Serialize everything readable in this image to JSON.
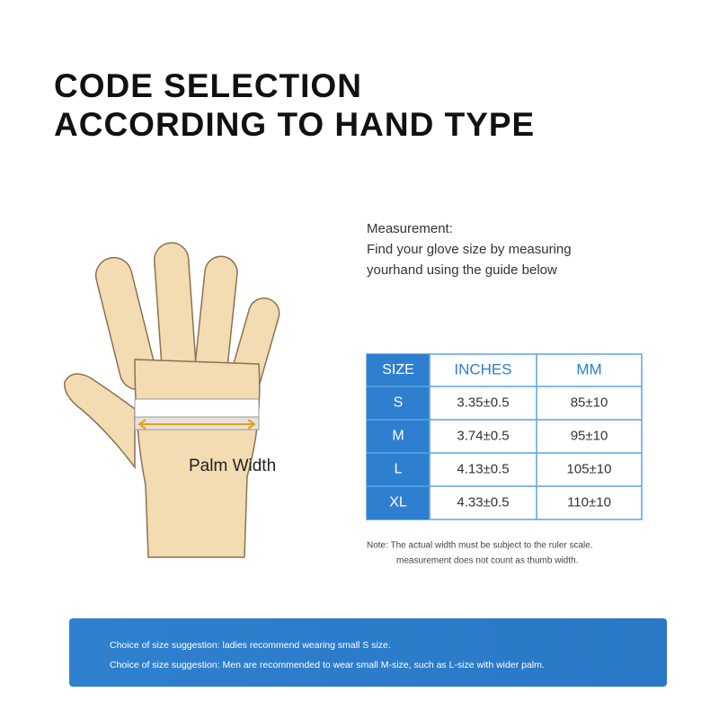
{
  "header": {
    "title": [
      "CODE SELECTION",
      "ACCORDING TO HAND TYPE"
    ]
  },
  "hand": {
    "label": "Palm Width"
  },
  "measurement": {
    "lines": [
      "Measurement:",
      "Find your glove size by measuring",
      "yourhand using the guide below"
    ]
  },
  "table": {
    "header": [
      "SIZE",
      "INCHES",
      "MM"
    ],
    "rows": [
      [
        "S",
        "3.35±0.5",
        "85±10"
      ],
      [
        "M",
        "3.74±0.5",
        "95±10"
      ],
      [
        "L",
        "4.13±0.5",
        "105±10"
      ],
      [
        "XL",
        "4.33±0.5",
        "110±10"
      ]
    ]
  },
  "note": [
    "Note: The actual width must be subject to the ruler scale.",
    "measurement does not count as thumb width."
  ],
  "footer": [
    "Choice of size suggestion: ladies recommend wearing small S size.",
    "Choice of size suggestion: Men are recommended to wear small M-size, such as L-size with wider palm."
  ]
}
